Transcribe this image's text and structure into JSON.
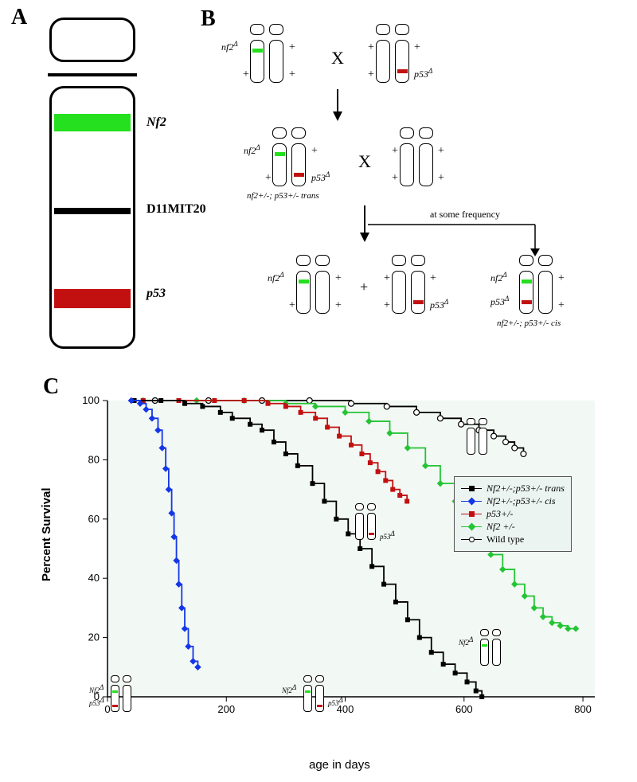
{
  "labels": {
    "A": "A",
    "B": "B",
    "C": "C",
    "Nf2": "Nf2",
    "D11": "D11MIT20",
    "p53": "p53",
    "nf2D": "nf2",
    "p53D": "p53",
    "delta": "Δ",
    "trans": "nf2+/-; p53+/- trans",
    "cis": "nf2+/-; p53+/- cis",
    "atfreq": "at some frequency",
    "xaxis": "age in days",
    "yaxis": "Percent Survival"
  },
  "colors": {
    "nf2": "#24e01e",
    "p53": "#c21010",
    "trans": "#000000",
    "cis": "#1536e8",
    "p53line": "#c21010",
    "nf2line": "#24c434",
    "wt": "#000000",
    "wtfill": "#ffffff",
    "bg": "#ffffff",
    "axis": "#000000",
    "plotbg": "#f2f8f4"
  },
  "chart": {
    "type": "survival-step",
    "xlim": [
      0,
      820
    ],
    "ylim": [
      0,
      100
    ],
    "xticks": [
      0,
      200,
      400,
      600,
      800
    ],
    "yticks": [
      0,
      20,
      40,
      60,
      80,
      100
    ],
    "series": {
      "trans": {
        "label": "Nf2+/-;p53+/- trans",
        "color": "#000000",
        "marker": "square-filled",
        "pts": [
          [
            45,
            100
          ],
          [
            90,
            100
          ],
          [
            130,
            99
          ],
          [
            160,
            98
          ],
          [
            190,
            96
          ],
          [
            210,
            94
          ],
          [
            240,
            92
          ],
          [
            260,
            90
          ],
          [
            280,
            86
          ],
          [
            300,
            82
          ],
          [
            320,
            78
          ],
          [
            345,
            72
          ],
          [
            365,
            66
          ],
          [
            385,
            60
          ],
          [
            405,
            55
          ],
          [
            425,
            50
          ],
          [
            445,
            44
          ],
          [
            465,
            38
          ],
          [
            485,
            32
          ],
          [
            505,
            26
          ],
          [
            525,
            20
          ],
          [
            545,
            15
          ],
          [
            565,
            11
          ],
          [
            585,
            8
          ],
          [
            605,
            5
          ],
          [
            620,
            2
          ],
          [
            630,
            0
          ]
        ]
      },
      "cis": {
        "label": "Nf2+/-;p53+/- cis",
        "color": "#1536e8",
        "marker": "diamond-filled",
        "pts": [
          [
            40,
            100
          ],
          [
            55,
            99
          ],
          [
            65,
            97
          ],
          [
            75,
            94
          ],
          [
            85,
            90
          ],
          [
            92,
            84
          ],
          [
            98,
            77
          ],
          [
            103,
            70
          ],
          [
            108,
            62
          ],
          [
            112,
            54
          ],
          [
            116,
            46
          ],
          [
            120,
            38
          ],
          [
            125,
            30
          ],
          [
            130,
            23
          ],
          [
            136,
            17
          ],
          [
            144,
            12
          ],
          [
            152,
            10
          ]
        ]
      },
      "p53": {
        "label": "p53+/-",
        "color": "#c21010",
        "marker": "square-filled",
        "pts": [
          [
            60,
            100
          ],
          [
            120,
            100
          ],
          [
            180,
            100
          ],
          [
            230,
            100
          ],
          [
            270,
            99
          ],
          [
            300,
            98
          ],
          [
            325,
            96
          ],
          [
            350,
            94
          ],
          [
            370,
            91
          ],
          [
            390,
            88
          ],
          [
            410,
            85
          ],
          [
            428,
            82
          ],
          [
            442,
            79
          ],
          [
            455,
            76
          ],
          [
            468,
            73
          ],
          [
            480,
            70
          ],
          [
            492,
            68
          ],
          [
            504,
            66
          ]
        ]
      },
      "nf2": {
        "label": "Nf2 +/-",
        "color": "#24c434",
        "marker": "diamond-filled",
        "pts": [
          [
            60,
            100
          ],
          [
            150,
            100
          ],
          [
            230,
            100
          ],
          [
            300,
            99
          ],
          [
            350,
            98
          ],
          [
            400,
            96
          ],
          [
            440,
            93
          ],
          [
            475,
            89
          ],
          [
            505,
            84
          ],
          [
            535,
            78
          ],
          [
            560,
            72
          ],
          [
            585,
            66
          ],
          [
            605,
            60
          ],
          [
            625,
            54
          ],
          [
            645,
            48
          ],
          [
            665,
            43
          ],
          [
            685,
            38
          ],
          [
            702,
            34
          ],
          [
            718,
            30
          ],
          [
            733,
            27
          ],
          [
            748,
            25
          ],
          [
            762,
            24
          ],
          [
            775,
            23
          ],
          [
            788,
            23
          ]
        ]
      },
      "wt": {
        "label": "Wild type",
        "color": "#000000",
        "fill": "#ffffff",
        "marker": "circle-open",
        "pts": [
          [
            80,
            100
          ],
          [
            170,
            100
          ],
          [
            260,
            100
          ],
          [
            340,
            100
          ],
          [
            410,
            99
          ],
          [
            470,
            98
          ],
          [
            520,
            96
          ],
          [
            560,
            94
          ],
          [
            595,
            92
          ],
          [
            625,
            90
          ],
          [
            650,
            88
          ],
          [
            670,
            86
          ],
          [
            685,
            84
          ],
          [
            700,
            82
          ]
        ]
      }
    }
  }
}
